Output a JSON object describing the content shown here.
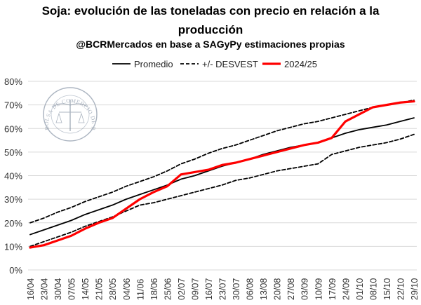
{
  "chart_data": {
    "type": "line",
    "title": "Soja: evolución de las toneladas con precio en relación a la producción",
    "title_line1": "Soja: evolución de las toneladas con precio en relación a la",
    "title_line2": "producción",
    "subtitle": "@BCRMercados en base a SAGyPy estimaciones propias",
    "watermark": "BOLSA DE COMERCIO DE ROSARIO",
    "xlabel": "",
    "ylabel": "",
    "ylim": [
      0,
      80
    ],
    "yticks": [
      "0%",
      "10%",
      "20%",
      "30%",
      "40%",
      "50%",
      "60%",
      "70%",
      "80%"
    ],
    "grid": true,
    "legend_position": "top",
    "categories": [
      "16/04",
      "23/04",
      "30/04",
      "07/05",
      "14/05",
      "21/05",
      "28/05",
      "04/06",
      "11/06",
      "18/06",
      "25/06",
      "02/07",
      "09/07",
      "16/07",
      "23/07",
      "30/07",
      "06/08",
      "13/08",
      "20/08",
      "27/08",
      "03/09",
      "10/09",
      "17/09",
      "24/09",
      "01/10",
      "08/10",
      "15/10",
      "22/10",
      "29/10"
    ],
    "series": [
      {
        "name": "Promedio",
        "style": "solid",
        "color": "#000000",
        "values": [
          15,
          17,
          19,
          21,
          23.5,
          25.5,
          27.5,
          30,
          32,
          34,
          36,
          38.5,
          40,
          42,
          44,
          45.5,
          47,
          49,
          50.5,
          52,
          53,
          54,
          56,
          58,
          59.5,
          60.5,
          61.5,
          63,
          64.5
        ]
      },
      {
        "name": "+/- DESVEST",
        "style": "dashed",
        "color": "#000000",
        "values": [
          20,
          22,
          24.5,
          26.5,
          29,
          31,
          33,
          35.5,
          37.5,
          39.5,
          42,
          45,
          47,
          49.5,
          51.5,
          53,
          55,
          57,
          59,
          60.5,
          62,
          63,
          64.5,
          66,
          67.5,
          69,
          70,
          71,
          72
        ]
      },
      {
        "name": "",
        "style": "dashed",
        "color": "#000000",
        "values": [
          10,
          12,
          14,
          16,
          18.5,
          20.5,
          22.5,
          25,
          27.5,
          28.5,
          30,
          31.5,
          33,
          34.5,
          36,
          38,
          39,
          40.5,
          42,
          43,
          44,
          45,
          49,
          50.5,
          52,
          53,
          54,
          55.5,
          57.5
        ]
      },
      {
        "name": "2024/25",
        "style": "solid-thick",
        "color": "#ff0000",
        "values": [
          9.5,
          10.5,
          12.5,
          14.5,
          17.5,
          20,
          22,
          26,
          30,
          33,
          35.5,
          40.5,
          41.5,
          42.5,
          44.5,
          45.5,
          47,
          48.5,
          50,
          51.5,
          53,
          54,
          56,
          63,
          66,
          69,
          70,
          71,
          71.5
        ]
      }
    ]
  }
}
